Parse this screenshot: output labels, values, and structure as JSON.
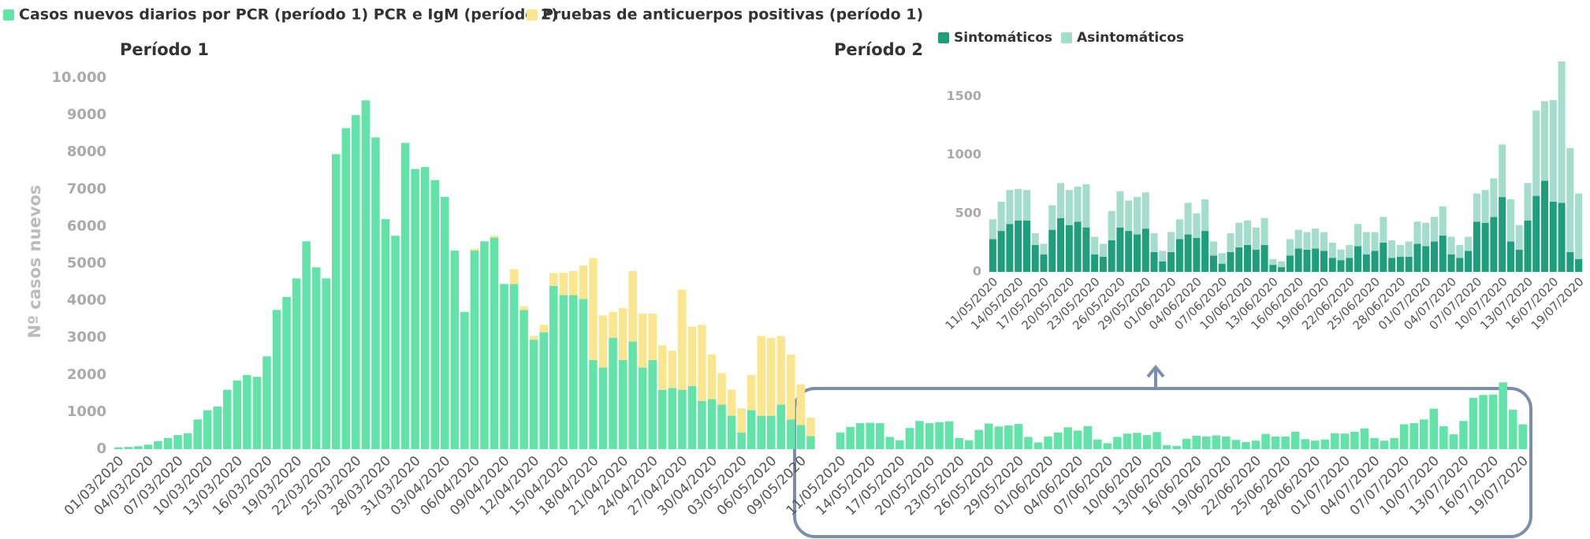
{
  "chart_data": [
    {
      "type": "bar",
      "stacked": true,
      "title": "Período 1",
      "y_label": "Nº casos nuevos",
      "ylim": [
        0,
        10000
      ],
      "yticks": [
        0,
        1000,
        2000,
        3000,
        4000,
        5000,
        6000,
        7000,
        8000,
        9000,
        {
          "value": 10000,
          "label": "10.000"
        }
      ],
      "grid": false,
      "categories": [
        "01/03/2020",
        null,
        null,
        "04/03/2020",
        null,
        null,
        "07/03/2020",
        null,
        null,
        "10/03/2020",
        null,
        null,
        "13/03/2020",
        null,
        null,
        "16/03/2020",
        null,
        null,
        "19/03/2020",
        null,
        null,
        "22/03/2020",
        null,
        null,
        "25/03/2020",
        null,
        null,
        "28/03/2020",
        null,
        null,
        "31/03/2020",
        null,
        null,
        "03/04/2020",
        null,
        null,
        "06/04/2020",
        null,
        null,
        "09/04/2020",
        null,
        null,
        "12/04/2020",
        null,
        null,
        "15/04/2020",
        null,
        null,
        "18/04/2020",
        null,
        null,
        "21/04/2020",
        null,
        null,
        "24/04/2020",
        null,
        null,
        "27/04/2020",
        null,
        null,
        "30/04/2020",
        null,
        null,
        "03/05/2020",
        null,
        null,
        "06/05/2020",
        null,
        null,
        "09/05/2020",
        null,
        null,
        null,
        "11/05/2020",
        null,
        null,
        "14/05/2020",
        null,
        null,
        "17/05/2020",
        null,
        null,
        "20/05/2020",
        null,
        null,
        "23/05/2020",
        null,
        null,
        "26/05/2020",
        null,
        null,
        "29/05/2020",
        null,
        null,
        "01/06/2020",
        null,
        null,
        "04/06/2020",
        null,
        null,
        "07/06/2020",
        null,
        null,
        "10/06/2020",
        null,
        null,
        "13/06/2020",
        null,
        null,
        "16/06/2020",
        null,
        null,
        "19/06/2020",
        null,
        null,
        "22/06/2020",
        null,
        null,
        "25/06/2020",
        null,
        null,
        "28/06/2020",
        null,
        null,
        "01/07/2020",
        null,
        null,
        "04/07/2020",
        null,
        null,
        "07/07/2020",
        null,
        null,
        "10/07/2020",
        null,
        null,
        "13/07/2020",
        null,
        null,
        "16/07/2020",
        null,
        null,
        "19/07/2020"
      ],
      "series": [
        {
          "name": "Casos nuevos diarios por PCR (período 1) PCR e IgM (período 2)",
          "color": "#62e4a8",
          "values": [
            50,
            60,
            80,
            120,
            220,
            300,
            380,
            430,
            800,
            1050,
            1150,
            1600,
            1850,
            2000,
            1950,
            2500,
            3750,
            4100,
            4600,
            5600,
            4900,
            4600,
            7950,
            8650,
            9000,
            9400,
            8400,
            6200,
            5750,
            8250,
            7550,
            7600,
            7250,
            6800,
            5350,
            3700,
            5350,
            5600,
            5700,
            4450,
            4450,
            3750,
            2950,
            3150,
            4400,
            4150,
            4150,
            4050,
            2400,
            2200,
            3000,
            2400,
            2900,
            2200,
            2400,
            1600,
            1650,
            1600,
            1700,
            1300,
            1350,
            1200,
            900,
            450,
            1050,
            900,
            900,
            1200,
            800,
            650,
            350,
            null,
            null,
            450,
            600,
            700,
            710,
            700,
            330,
            240,
            570,
            760,
            700,
            730,
            750,
            300,
            240,
            520,
            690,
            610,
            640,
            680,
            330,
            180,
            340,
            450,
            590,
            500,
            620,
            260,
            160,
            330,
            420,
            440,
            380,
            460,
            110,
            90,
            280,
            360,
            340,
            370,
            340,
            250,
            190,
            230,
            410,
            340,
            340,
            470,
            270,
            230,
            260,
            430,
            420,
            470,
            560,
            300,
            230,
            300,
            670,
            700,
            800,
            1090,
            620,
            400,
            760,
            1380,
            1460,
            1470,
            1800,
            1060,
            670
          ]
        },
        {
          "name": "Pruebas de anticuerpos positivas (período 1)",
          "color": "#fae68e",
          "values": [
            null,
            null,
            null,
            null,
            null,
            null,
            null,
            null,
            null,
            null,
            null,
            null,
            null,
            null,
            null,
            null,
            null,
            null,
            null,
            null,
            null,
            null,
            null,
            null,
            null,
            null,
            null,
            null,
            null,
            null,
            null,
            null,
            null,
            null,
            null,
            null,
            50,
            null,
            50,
            null,
            400,
            100,
            100,
            200,
            350,
            600,
            650,
            900,
            2750,
            1400,
            700,
            1400,
            1900,
            1450,
            1250,
            1200,
            1000,
            2700,
            1600,
            2050,
            1200,
            850,
            700,
            650,
            950,
            2150,
            2100,
            1850,
            1750,
            1100,
            500,
            null,
            null,
            null,
            null,
            null,
            null,
            null,
            null,
            null,
            null,
            null,
            null,
            null,
            null,
            null,
            null,
            null,
            null,
            null,
            null,
            null,
            null,
            null,
            null,
            null,
            null,
            null,
            null,
            null,
            null,
            null,
            null,
            null,
            null,
            null,
            null,
            null,
            null,
            null,
            null,
            null,
            null,
            null,
            null,
            null,
            null,
            null,
            null,
            null,
            null,
            null,
            null,
            null,
            null,
            null,
            null,
            null,
            null,
            null,
            null,
            null,
            null,
            null,
            null,
            null,
            null,
            null,
            null,
            null,
            null,
            null,
            null
          ]
        }
      ]
    },
    {
      "type": "bar",
      "stacked": true,
      "title": "Período 2",
      "ylim": [
        0,
        1800
      ],
      "yticks": [
        0,
        500,
        1000,
        1500
      ],
      "grid": false,
      "categories": [
        "11/05/2020",
        null,
        null,
        "14/05/2020",
        null,
        null,
        "17/05/2020",
        null,
        null,
        "20/05/2020",
        null,
        null,
        "23/05/2020",
        null,
        null,
        "26/05/2020",
        null,
        null,
        "29/05/2020",
        null,
        null,
        "01/06/2020",
        null,
        null,
        "04/06/2020",
        null,
        null,
        "07/06/2020",
        null,
        null,
        "10/06/2020",
        null,
        null,
        "13/06/2020",
        null,
        null,
        "16/06/2020",
        null,
        null,
        "19/06/2020",
        null,
        null,
        "22/06/2020",
        null,
        null,
        "25/06/2020",
        null,
        null,
        "28/06/2020",
        null,
        null,
        "01/07/2020",
        null,
        null,
        "04/07/2020",
        null,
        null,
        "07/07/2020",
        null,
        null,
        "10/07/2020",
        null,
        null,
        "13/07/2020",
        null,
        null,
        "16/07/2020",
        null,
        null,
        "19/07/2020"
      ],
      "series": [
        {
          "name": "Sintomáticos",
          "color": "#1f9e7c",
          "values": [
            280,
            350,
            410,
            440,
            440,
            230,
            150,
            360,
            460,
            400,
            430,
            380,
            150,
            130,
            270,
            380,
            350,
            320,
            370,
            170,
            90,
            170,
            280,
            320,
            290,
            350,
            140,
            70,
            170,
            210,
            230,
            190,
            230,
            60,
            40,
            140,
            200,
            190,
            200,
            180,
            120,
            100,
            120,
            220,
            150,
            180,
            250,
            120,
            130,
            130,
            240,
            220,
            260,
            310,
            150,
            120,
            180,
            430,
            420,
            470,
            640,
            260,
            190,
            440,
            650,
            780,
            600,
            590,
            170,
            110
          ]
        },
        {
          "name": "Asintomáticos",
          "color": "#a5ddcd",
          "values": [
            170,
            250,
            290,
            270,
            260,
            100,
            90,
            210,
            300,
            300,
            300,
            370,
            150,
            110,
            250,
            310,
            260,
            320,
            310,
            160,
            90,
            170,
            170,
            270,
            210,
            270,
            120,
            90,
            160,
            210,
            210,
            190,
            230,
            50,
            50,
            140,
            160,
            150,
            170,
            160,
            130,
            90,
            110,
            190,
            190,
            160,
            220,
            150,
            100,
            130,
            190,
            200,
            210,
            250,
            150,
            110,
            120,
            240,
            280,
            330,
            450,
            360,
            210,
            320,
            730,
            680,
            870,
            1210,
            890,
            560
          ]
        }
      ]
    }
  ]
}
